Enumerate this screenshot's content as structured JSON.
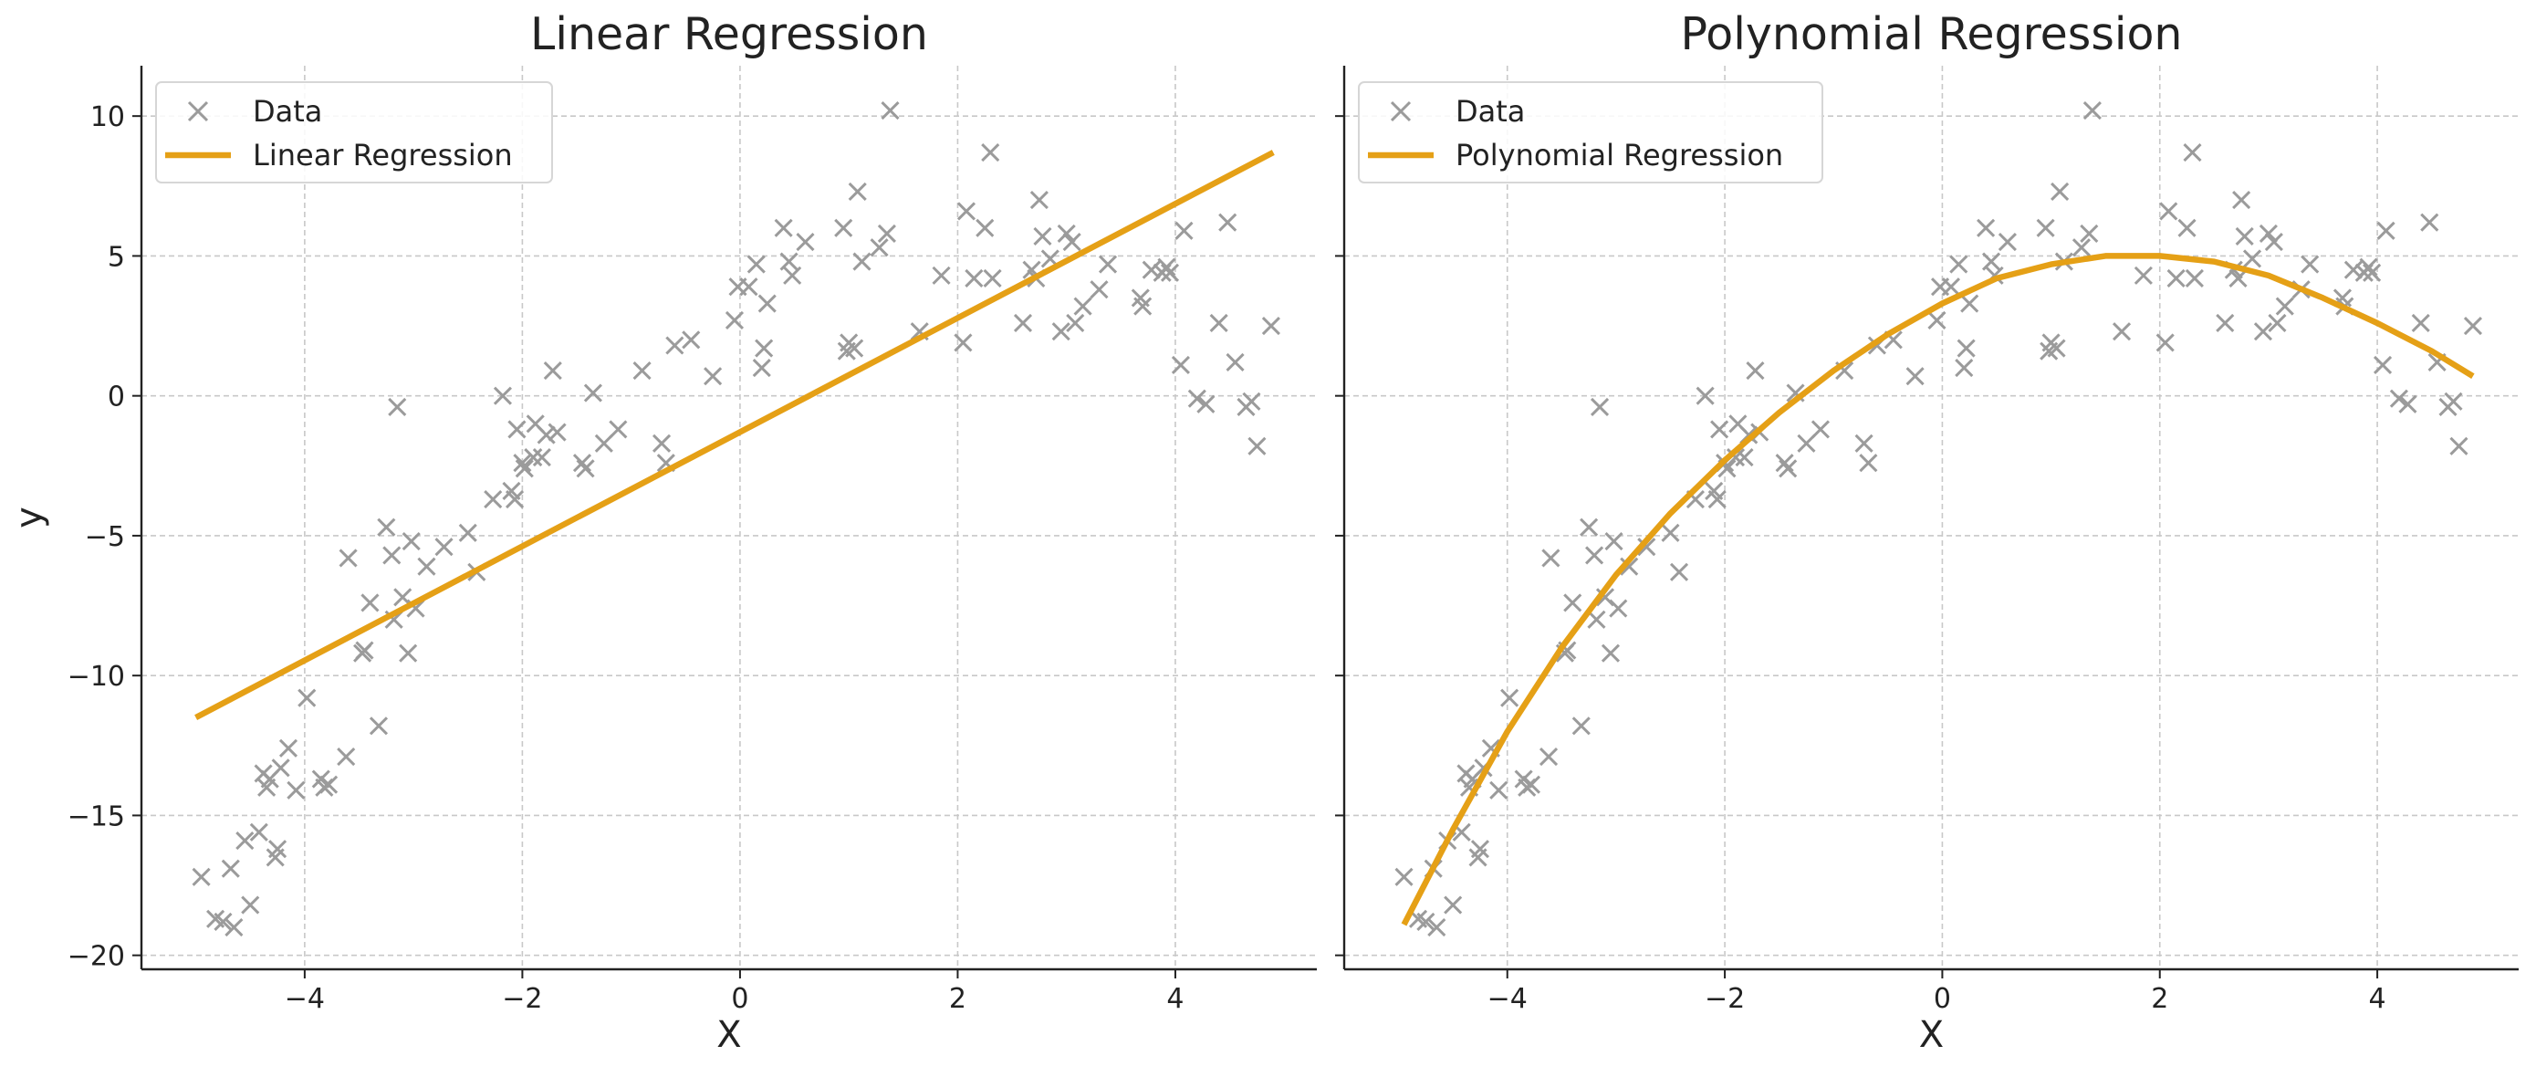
{
  "chart_data": [
    {
      "type": "scatter",
      "title": "Linear Regression",
      "xlabel": "X",
      "ylabel": "y",
      "xlim": [
        -5.5,
        5.3
      ],
      "ylim": [
        -20.5,
        11.8
      ],
      "xticks": [
        -4,
        -2,
        0,
        2,
        4
      ],
      "yticks": [
        10,
        5,
        0,
        -5,
        -10,
        -15,
        -20
      ],
      "grid": true,
      "legend_position": "top-left",
      "series": [
        {
          "name": "Data",
          "kind": "scatter",
          "marker": "x",
          "color": "#9b9b9b",
          "x": [
            -4.95,
            -4.82,
            -4.75,
            -4.68,
            -4.65,
            -4.55,
            -4.5,
            -4.42,
            -4.38,
            -4.35,
            -4.32,
            -4.27,
            -4.25,
            -4.22,
            -4.15,
            -4.08,
            -3.98,
            -3.85,
            -3.82,
            -3.78,
            -3.62,
            -3.6,
            -3.47,
            -3.45,
            -3.4,
            -3.32,
            -3.25,
            -3.2,
            -3.18,
            -3.15,
            -3.1,
            -3.05,
            -3.02,
            -2.98,
            -2.88,
            -2.72,
            -2.5,
            -2.42,
            -2.27,
            -2.18,
            -2.1,
            -2.07,
            -2.05,
            -2.0,
            -1.98,
            -1.9,
            -1.88,
            -1.82,
            -1.78,
            -1.72,
            -1.68,
            -1.45,
            -1.42,
            -1.35,
            -1.25,
            -1.12,
            -0.9,
            -0.72,
            -0.68,
            -0.6,
            -0.45,
            -0.25,
            -0.05,
            -0.02,
            0.08,
            0.15,
            0.2,
            0.22,
            0.25,
            0.4,
            0.45,
            0.48,
            0.6,
            0.95,
            0.98,
            1.0,
            1.05,
            1.08,
            1.12,
            1.28,
            1.35,
            1.38,
            1.65,
            1.85,
            2.05,
            2.08,
            2.15,
            2.25,
            2.3,
            2.32,
            2.6,
            2.68,
            2.72,
            2.75,
            2.78,
            2.85,
            2.95,
            3.0,
            3.05,
            3.08,
            3.15,
            3.3,
            3.38,
            3.68,
            3.7,
            3.78,
            3.88,
            3.92,
            3.95,
            4.05,
            4.08,
            4.2,
            4.28,
            4.4,
            4.48,
            4.55,
            4.65,
            4.7,
            4.75,
            4.88
          ],
          "y": [
            -17.2,
            -18.7,
            -18.8,
            -16.9,
            -19.0,
            -15.9,
            -18.2,
            -15.6,
            -13.5,
            -14.0,
            -13.7,
            -16.5,
            -16.2,
            -13.3,
            -12.6,
            -14.1,
            -10.8,
            -13.7,
            -14.0,
            -13.9,
            -12.9,
            -5.8,
            -9.2,
            -9.1,
            -7.4,
            -11.8,
            -4.7,
            -5.7,
            -8.0,
            -0.4,
            -7.2,
            -9.2,
            -5.2,
            -7.6,
            -6.1,
            -5.4,
            -4.9,
            -6.3,
            -3.7,
            0.0,
            -3.4,
            -3.7,
            -1.2,
            -2.4,
            -2.6,
            -2.2,
            -1.0,
            -2.2,
            -1.4,
            0.9,
            -1.3,
            -2.4,
            -2.6,
            0.1,
            -1.7,
            -1.2,
            0.9,
            -1.7,
            -2.4,
            1.8,
            2.0,
            0.7,
            2.7,
            3.9,
            3.9,
            4.7,
            1.0,
            1.7,
            3.3,
            6.0,
            4.8,
            4.3,
            5.5,
            6.0,
            1.6,
            1.9,
            1.7,
            7.3,
            4.8,
            5.3,
            5.8,
            10.2,
            2.3,
            4.3,
            1.9,
            6.6,
            4.2,
            6.0,
            8.7,
            4.2,
            2.6,
            4.5,
            4.2,
            7.0,
            5.7,
            4.9,
            2.3,
            5.8,
            5.5,
            2.6,
            3.2,
            3.8,
            4.7,
            3.5,
            3.2,
            4.5,
            4.4,
            4.6,
            4.4,
            1.1,
            5.9,
            -0.1,
            -0.3,
            2.6,
            6.2,
            1.2,
            -0.4,
            -0.2,
            -1.8,
            2.5
          ]
        },
        {
          "name": "Linear Regression",
          "kind": "line",
          "color": "#e5a016",
          "x": [
            -5.0,
            4.9
          ],
          "y": [
            -11.5,
            8.7
          ]
        }
      ]
    },
    {
      "type": "scatter",
      "title": "Polynomial Regression",
      "xlabel": "X",
      "ylabel": "",
      "xlim": [
        -5.5,
        5.3
      ],
      "ylim": [
        -20.5,
        11.8
      ],
      "xticks": [
        -4,
        -2,
        0,
        2,
        4
      ],
      "yticks": [
        10,
        5,
        0,
        -5,
        -10,
        -15,
        -20
      ],
      "grid": true,
      "legend_position": "top-left",
      "series": [
        {
          "name": "Data",
          "kind": "scatter",
          "marker": "x",
          "color": "#9b9b9b",
          "x": [
            -4.95,
            -4.82,
            -4.75,
            -4.68,
            -4.65,
            -4.55,
            -4.5,
            -4.42,
            -4.38,
            -4.35,
            -4.32,
            -4.27,
            -4.25,
            -4.22,
            -4.15,
            -4.08,
            -3.98,
            -3.85,
            -3.82,
            -3.78,
            -3.62,
            -3.6,
            -3.47,
            -3.45,
            -3.4,
            -3.32,
            -3.25,
            -3.2,
            -3.18,
            -3.15,
            -3.1,
            -3.05,
            -3.02,
            -2.98,
            -2.88,
            -2.72,
            -2.5,
            -2.42,
            -2.27,
            -2.18,
            -2.1,
            -2.07,
            -2.05,
            -2.0,
            -1.98,
            -1.9,
            -1.88,
            -1.82,
            -1.78,
            -1.72,
            -1.68,
            -1.45,
            -1.42,
            -1.35,
            -1.25,
            -1.12,
            -0.9,
            -0.72,
            -0.68,
            -0.6,
            -0.45,
            -0.25,
            -0.05,
            -0.02,
            0.08,
            0.15,
            0.2,
            0.22,
            0.25,
            0.4,
            0.45,
            0.48,
            0.6,
            0.95,
            0.98,
            1.0,
            1.05,
            1.08,
            1.12,
            1.28,
            1.35,
            1.38,
            1.65,
            1.85,
            2.05,
            2.08,
            2.15,
            2.25,
            2.3,
            2.32,
            2.6,
            2.68,
            2.72,
            2.75,
            2.78,
            2.85,
            2.95,
            3.0,
            3.05,
            3.08,
            3.15,
            3.3,
            3.38,
            3.68,
            3.7,
            3.78,
            3.88,
            3.92,
            3.95,
            4.05,
            4.08,
            4.2,
            4.28,
            4.4,
            4.48,
            4.55,
            4.65,
            4.7,
            4.75,
            4.88
          ],
          "y": [
            -17.2,
            -18.7,
            -18.8,
            -16.9,
            -19.0,
            -15.9,
            -18.2,
            -15.6,
            -13.5,
            -14.0,
            -13.7,
            -16.5,
            -16.2,
            -13.3,
            -12.6,
            -14.1,
            -10.8,
            -13.7,
            -14.0,
            -13.9,
            -12.9,
            -5.8,
            -9.2,
            -9.1,
            -7.4,
            -11.8,
            -4.7,
            -5.7,
            -8.0,
            -0.4,
            -7.2,
            -9.2,
            -5.2,
            -7.6,
            -6.1,
            -5.4,
            -4.9,
            -6.3,
            -3.7,
            0.0,
            -3.4,
            -3.7,
            -1.2,
            -2.4,
            -2.6,
            -2.2,
            -1.0,
            -2.2,
            -1.4,
            0.9,
            -1.3,
            -2.4,
            -2.6,
            0.1,
            -1.7,
            -1.2,
            0.9,
            -1.7,
            -2.4,
            1.8,
            2.0,
            0.7,
            2.7,
            3.9,
            3.9,
            4.7,
            1.0,
            1.7,
            3.3,
            6.0,
            4.8,
            4.3,
            5.5,
            6.0,
            1.6,
            1.9,
            1.7,
            7.3,
            4.8,
            5.3,
            5.8,
            10.2,
            2.3,
            4.3,
            1.9,
            6.6,
            4.2,
            6.0,
            8.7,
            4.2,
            2.6,
            4.5,
            4.2,
            7.0,
            5.7,
            4.9,
            2.3,
            5.8,
            5.5,
            2.6,
            3.2,
            3.8,
            4.7,
            3.5,
            3.2,
            4.5,
            4.4,
            4.6,
            4.4,
            1.1,
            5.9,
            -0.1,
            -0.3,
            2.6,
            6.2,
            1.2,
            -0.4,
            -0.2,
            -1.8,
            2.5
          ]
        },
        {
          "name": "Polynomial Regression",
          "kind": "line",
          "color": "#e5a016",
          "x": [
            -4.95,
            -4.5,
            -4.0,
            -3.5,
            -3.0,
            -2.5,
            -2.0,
            -1.5,
            -1.0,
            -0.5,
            0.0,
            0.5,
            1.0,
            1.5,
            2.0,
            2.5,
            3.0,
            3.5,
            4.0,
            4.5,
            4.88
          ],
          "y": [
            -18.9,
            -15.5,
            -12.0,
            -9.0,
            -6.4,
            -4.2,
            -2.3,
            -0.6,
            0.9,
            2.2,
            3.3,
            4.2,
            4.7,
            5.0,
            5.0,
            4.8,
            4.3,
            3.5,
            2.6,
            1.6,
            0.7
          ]
        }
      ]
    }
  ]
}
